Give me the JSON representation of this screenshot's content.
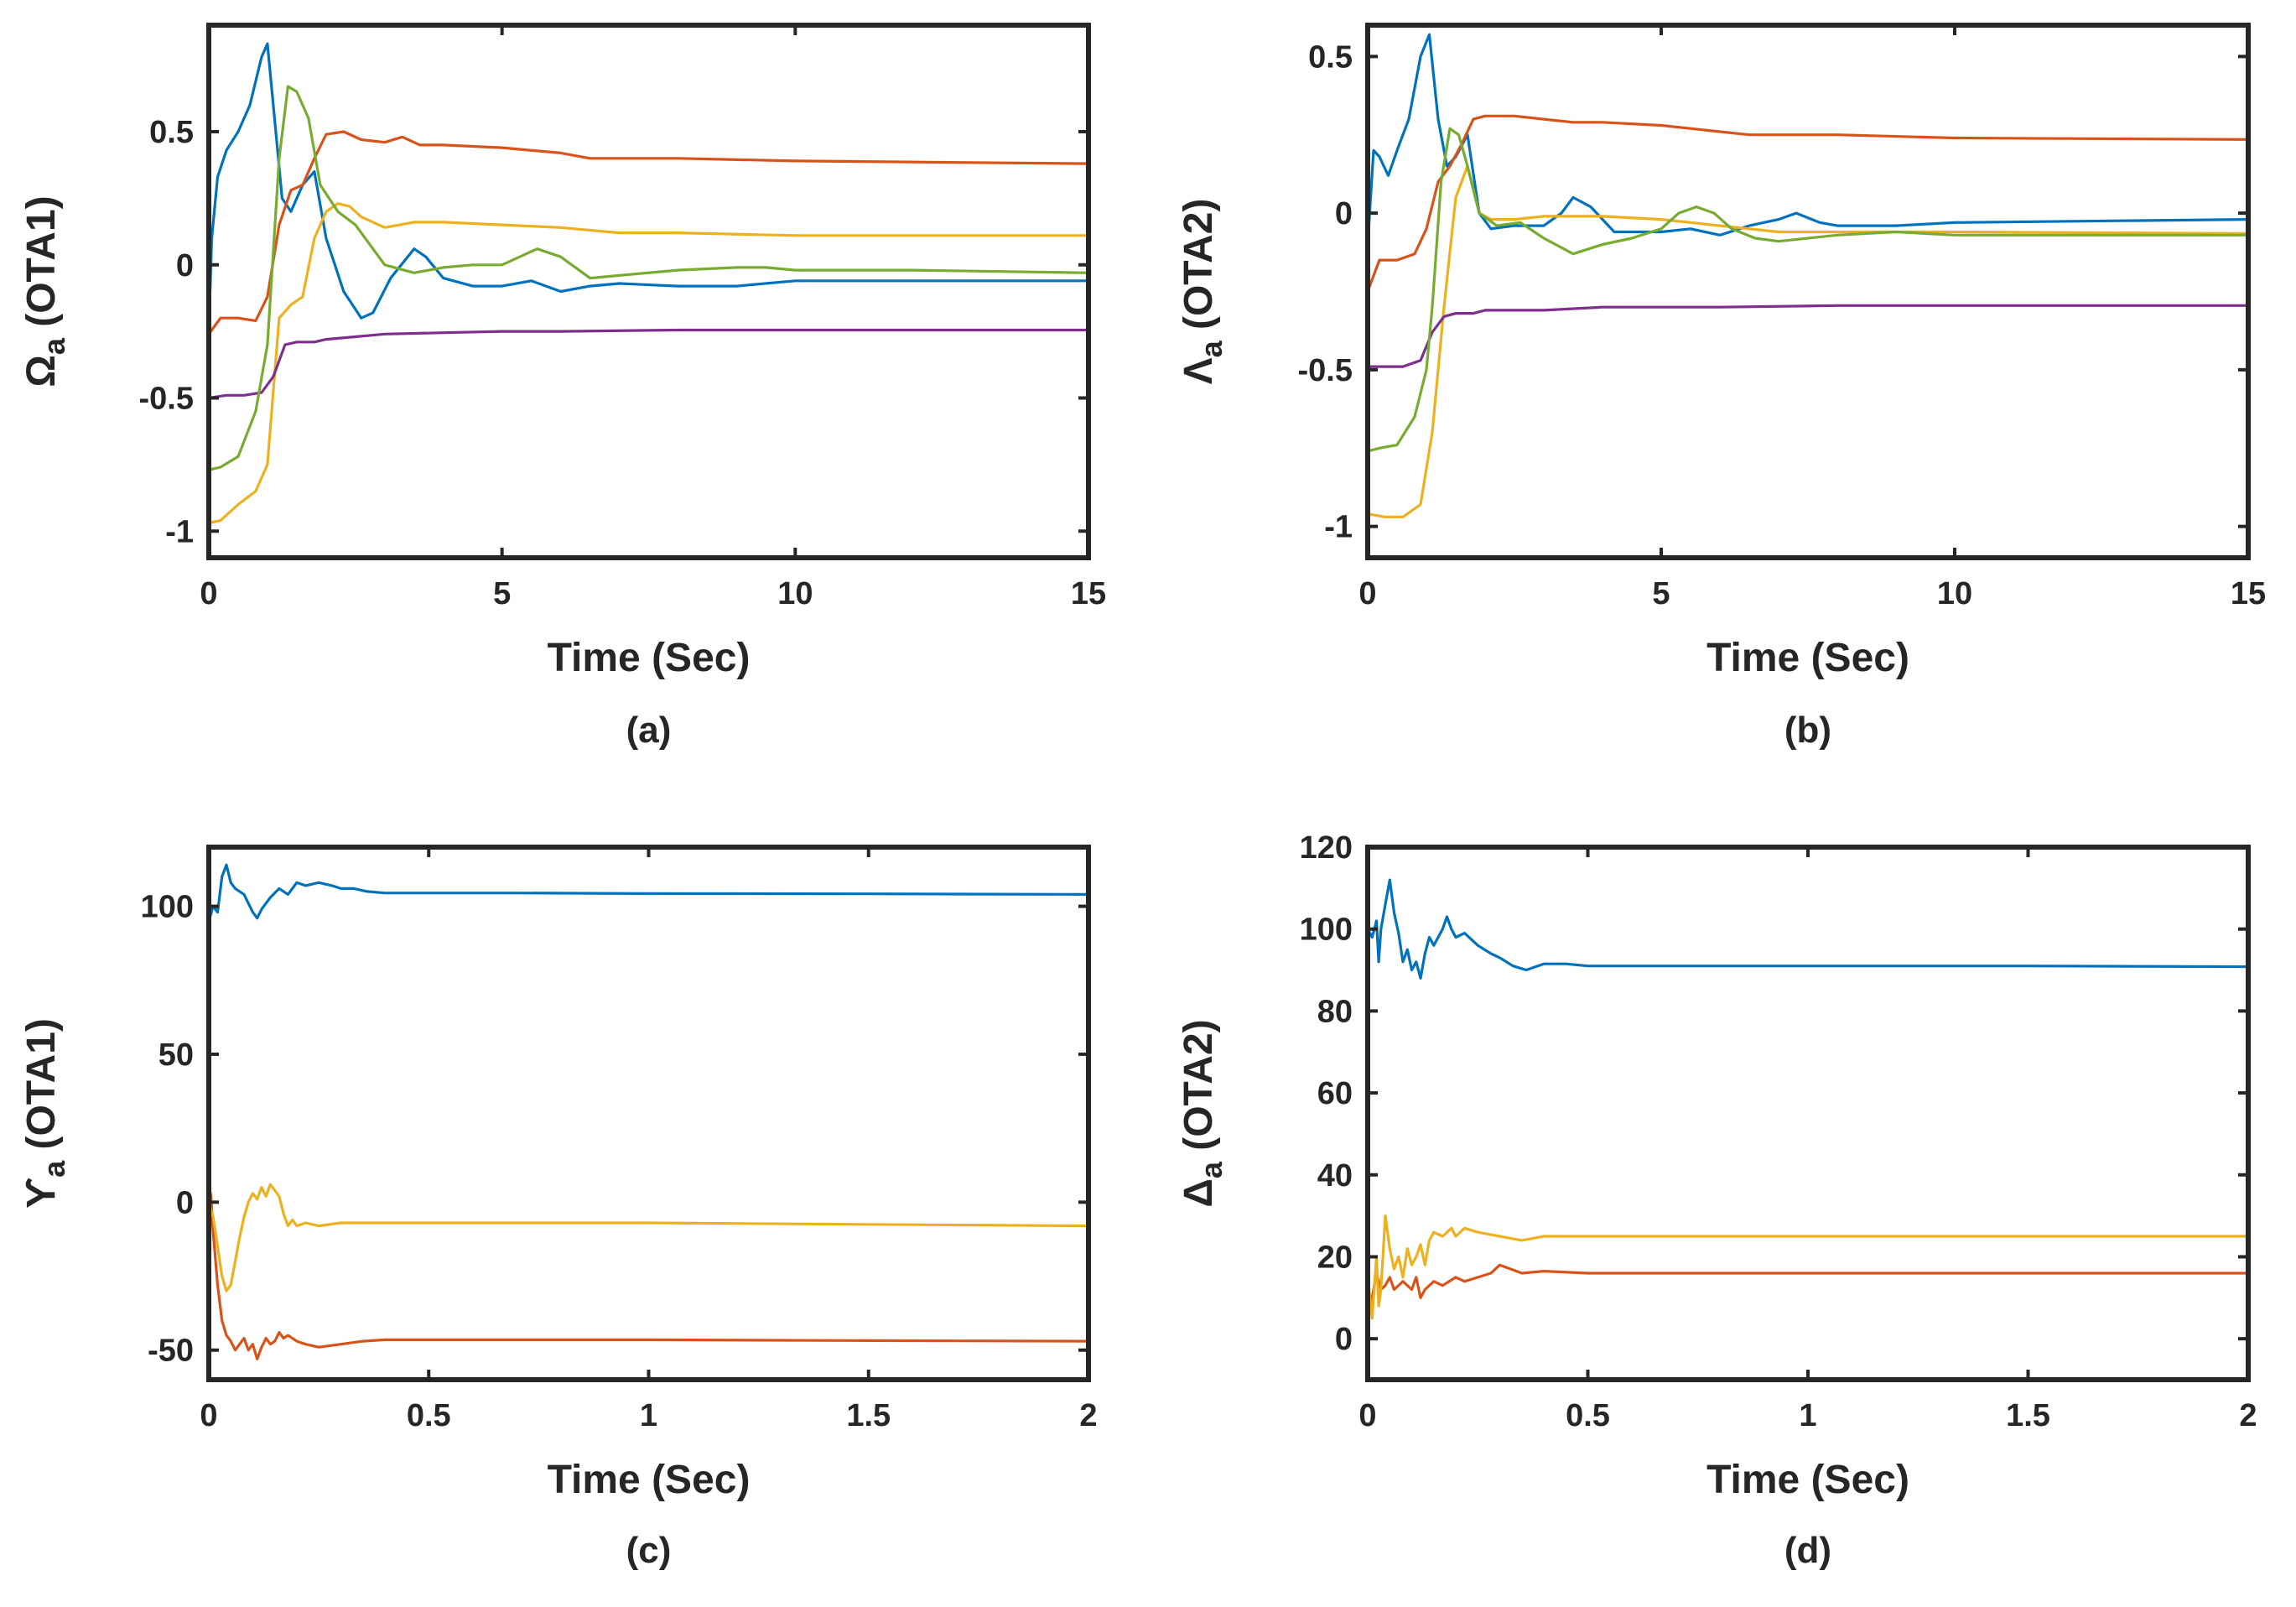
{
  "colors": {
    "blue": "#0072BD",
    "red": "#D95319",
    "yellow": "#EDB120",
    "purple": "#7E2F8E",
    "green": "#77AC30",
    "axis": "#262626"
  },
  "chart_data": [
    {
      "id": "a",
      "type": "line",
      "caption": "(a)",
      "ylabel": {
        "symbol": "Ω",
        "sub": "a",
        "rest": " (OTA1)"
      },
      "xlabel": "Time (Sec)",
      "xlim": [
        0,
        15
      ],
      "ylim": [
        -1.1,
        0.9
      ],
      "xticks": [
        0,
        5,
        10,
        15
      ],
      "xticklabels": [
        "0",
        "5",
        "10",
        "15"
      ],
      "yticks": [
        -1,
        -0.5,
        0,
        0.5
      ],
      "yticklabels": [
        "-1",
        "-0.5",
        "0",
        "0.5"
      ],
      "series": [
        {
          "name": "blue",
          "color": "#0072BD",
          "x": [
            0,
            0.05,
            0.15,
            0.3,
            0.5,
            0.7,
            0.9,
            1.0,
            1.1,
            1.25,
            1.4,
            1.6,
            1.8,
            2.0,
            2.3,
            2.6,
            2.8,
            3.1,
            3.5,
            3.7,
            4.0,
            4.5,
            5.0,
            5.5,
            6.0,
            6.5,
            7.0,
            8.0,
            9.0,
            10.0,
            12.0,
            15.0
          ],
          "y": [
            -0.25,
            0.1,
            0.33,
            0.43,
            0.5,
            0.6,
            0.78,
            0.83,
            0.6,
            0.25,
            0.2,
            0.3,
            0.35,
            0.1,
            -0.1,
            -0.2,
            -0.18,
            -0.05,
            0.06,
            0.03,
            -0.05,
            -0.08,
            -0.08,
            -0.06,
            -0.1,
            -0.08,
            -0.07,
            -0.08,
            -0.08,
            -0.06,
            -0.06,
            -0.06
          ]
        },
        {
          "name": "red",
          "color": "#D95319",
          "x": [
            0,
            0.2,
            0.5,
            0.8,
            1.0,
            1.2,
            1.4,
            1.6,
            1.8,
            2.0,
            2.3,
            2.6,
            3.0,
            3.3,
            3.6,
            4.0,
            5.0,
            6.0,
            6.5,
            8.0,
            10.0,
            15.0
          ],
          "y": [
            -0.26,
            -0.2,
            -0.2,
            -0.21,
            -0.12,
            0.15,
            0.28,
            0.3,
            0.4,
            0.49,
            0.5,
            0.47,
            0.46,
            0.48,
            0.45,
            0.45,
            0.44,
            0.42,
            0.4,
            0.4,
            0.39,
            0.38
          ]
        },
        {
          "name": "yellow",
          "color": "#EDB120",
          "x": [
            0,
            0.2,
            0.5,
            0.8,
            1.0,
            1.2,
            1.4,
            1.6,
            1.8,
            2.0,
            2.2,
            2.4,
            2.6,
            3.0,
            3.5,
            4.0,
            5.0,
            6.0,
            7.0,
            8.0,
            10.0,
            15.0
          ],
          "y": [
            -0.97,
            -0.96,
            -0.9,
            -0.85,
            -0.75,
            -0.2,
            -0.15,
            -0.12,
            0.1,
            0.2,
            0.23,
            0.22,
            0.18,
            0.14,
            0.16,
            0.16,
            0.15,
            0.14,
            0.12,
            0.12,
            0.11,
            0.11
          ]
        },
        {
          "name": "purple",
          "color": "#7E2F8E",
          "x": [
            0,
            0.3,
            0.6,
            0.9,
            1.1,
            1.3,
            1.5,
            1.8,
            2.0,
            2.5,
            3.0,
            4.0,
            5.0,
            6.0,
            8.0,
            10.0,
            15.0
          ],
          "y": [
            -0.5,
            -0.49,
            -0.49,
            -0.48,
            -0.42,
            -0.3,
            -0.29,
            -0.29,
            -0.28,
            -0.27,
            -0.26,
            -0.255,
            -0.25,
            -0.25,
            -0.245,
            -0.245,
            -0.245
          ]
        },
        {
          "name": "green",
          "color": "#77AC30",
          "x": [
            0,
            0.2,
            0.5,
            0.8,
            1.0,
            1.2,
            1.35,
            1.5,
            1.7,
            1.9,
            2.2,
            2.5,
            3.0,
            3.5,
            4.0,
            4.5,
            5.0,
            5.6,
            6.0,
            6.5,
            7.0,
            8.0,
            9.0,
            9.5,
            10.0,
            12.0,
            15.0
          ],
          "y": [
            -0.77,
            -0.76,
            -0.72,
            -0.55,
            -0.3,
            0.4,
            0.67,
            0.65,
            0.55,
            0.3,
            0.2,
            0.15,
            0.0,
            -0.03,
            -0.01,
            0.0,
            0.0,
            0.06,
            0.03,
            -0.05,
            -0.04,
            -0.02,
            -0.01,
            -0.01,
            -0.02,
            -0.02,
            -0.03
          ]
        }
      ]
    },
    {
      "id": "b",
      "type": "line",
      "caption": "(b)",
      "ylabel": {
        "symbol": "Λ",
        "sub": "a",
        "rest": " (OTA2)"
      },
      "xlabel": "Time (Sec)",
      "xlim": [
        0,
        15
      ],
      "ylim": [
        -1.1,
        0.6
      ],
      "xticks": [
        0,
        5,
        10,
        15
      ],
      "xticklabels": [
        "0",
        "5",
        "10",
        "15"
      ],
      "yticks": [
        -1,
        -0.5,
        0,
        0.5
      ],
      "yticklabels": [
        "-1",
        "-0.5",
        "0",
        "0.5"
      ],
      "series": [
        {
          "name": "blue",
          "color": "#0072BD",
          "x": [
            0,
            0.1,
            0.2,
            0.35,
            0.5,
            0.7,
            0.9,
            1.05,
            1.2,
            1.35,
            1.5,
            1.7,
            1.9,
            2.1,
            2.5,
            3.0,
            3.3,
            3.5,
            3.8,
            4.2,
            5.0,
            5.5,
            6.0,
            6.5,
            7.0,
            7.3,
            7.7,
            8.0,
            9.0,
            10.0,
            15.0
          ],
          "y": [
            -0.1,
            0.2,
            0.18,
            0.12,
            0.2,
            0.3,
            0.5,
            0.57,
            0.3,
            0.15,
            0.18,
            0.25,
            0.0,
            -0.05,
            -0.04,
            -0.04,
            0.0,
            0.05,
            0.02,
            -0.06,
            -0.06,
            -0.05,
            -0.07,
            -0.04,
            -0.02,
            0.0,
            -0.03,
            -0.04,
            -0.04,
            -0.03,
            -0.02
          ]
        },
        {
          "name": "red",
          "color": "#D95319",
          "x": [
            0,
            0.2,
            0.5,
            0.8,
            1.0,
            1.2,
            1.4,
            1.6,
            1.8,
            2.0,
            2.5,
            3.0,
            3.5,
            4.0,
            5.0,
            6.0,
            6.5,
            8.0,
            10.0,
            15.0
          ],
          "y": [
            -0.25,
            -0.15,
            -0.15,
            -0.13,
            -0.05,
            0.1,
            0.15,
            0.22,
            0.3,
            0.31,
            0.31,
            0.3,
            0.29,
            0.29,
            0.28,
            0.26,
            0.25,
            0.25,
            0.24,
            0.235
          ]
        },
        {
          "name": "yellow",
          "color": "#EDB120",
          "x": [
            0,
            0.3,
            0.6,
            0.9,
            1.1,
            1.3,
            1.5,
            1.7,
            1.9,
            2.1,
            2.5,
            3.0,
            3.5,
            4.0,
            5.0,
            6.0,
            7.0,
            8.0,
            10.0,
            15.0
          ],
          "y": [
            -0.96,
            -0.97,
            -0.97,
            -0.93,
            -0.7,
            -0.3,
            0.05,
            0.15,
            0.0,
            -0.02,
            -0.02,
            -0.01,
            -0.01,
            -0.01,
            -0.02,
            -0.04,
            -0.06,
            -0.06,
            -0.06,
            -0.065
          ]
        },
        {
          "name": "purple",
          "color": "#7E2F8E",
          "x": [
            0,
            0.3,
            0.6,
            0.9,
            1.1,
            1.3,
            1.5,
            1.8,
            2.0,
            3.0,
            4.0,
            5.0,
            6.0,
            8.0,
            10.0,
            15.0
          ],
          "y": [
            -0.49,
            -0.49,
            -0.49,
            -0.47,
            -0.38,
            -0.33,
            -0.32,
            -0.32,
            -0.31,
            -0.31,
            -0.3,
            -0.3,
            -0.3,
            -0.295,
            -0.295,
            -0.295
          ]
        },
        {
          "name": "green",
          "color": "#77AC30",
          "x": [
            0,
            0.2,
            0.5,
            0.8,
            1.0,
            1.1,
            1.25,
            1.4,
            1.55,
            1.7,
            1.9,
            2.2,
            2.6,
            3.0,
            3.5,
            4.0,
            4.5,
            5.0,
            5.3,
            5.6,
            5.9,
            6.2,
            6.6,
            7.0,
            7.5,
            8.0,
            9.0,
            10.0,
            15.0
          ],
          "y": [
            -0.76,
            -0.75,
            -0.74,
            -0.65,
            -0.5,
            -0.3,
            0.1,
            0.27,
            0.25,
            0.15,
            0.0,
            -0.04,
            -0.03,
            -0.08,
            -0.13,
            -0.1,
            -0.08,
            -0.05,
            0.0,
            0.02,
            0.0,
            -0.05,
            -0.08,
            -0.09,
            -0.08,
            -0.07,
            -0.06,
            -0.07,
            -0.07
          ]
        }
      ]
    },
    {
      "id": "c",
      "type": "line",
      "caption": "(c)",
      "ylabel": {
        "symbol": "ϒ",
        "sub": "a",
        "rest": " (OTA1)"
      },
      "xlabel": "Time (Sec)",
      "xlim": [
        0,
        2
      ],
      "ylim": [
        -60,
        120
      ],
      "xticks": [
        0,
        0.5,
        1,
        1.5,
        2
      ],
      "xticklabels": [
        "0",
        "0.5",
        "1",
        "1.5",
        "2"
      ],
      "yticks": [
        -50,
        0,
        50,
        100
      ],
      "yticklabels": [
        "-50",
        "0",
        "50",
        "100"
      ],
      "series": [
        {
          "name": "blue",
          "color": "#0072BD",
          "x": [
            0,
            0.01,
            0.02,
            0.03,
            0.04,
            0.05,
            0.06,
            0.08,
            0.1,
            0.11,
            0.12,
            0.14,
            0.16,
            0.18,
            0.2,
            0.22,
            0.25,
            0.28,
            0.3,
            0.33,
            0.36,
            0.4,
            0.5,
            0.7,
            1.0,
            1.5,
            2.0
          ],
          "y": [
            95,
            100,
            98,
            110,
            114,
            108,
            106,
            104,
            98,
            96,
            99,
            103,
            106,
            104,
            108,
            107,
            108,
            107,
            106,
            106,
            105,
            104.5,
            104.5,
            104.5,
            104.3,
            104.2,
            104
          ]
        },
        {
          "name": "red",
          "color": "#D95319",
          "x": [
            0,
            0.005,
            0.01,
            0.02,
            0.03,
            0.04,
            0.05,
            0.06,
            0.07,
            0.08,
            0.09,
            0.1,
            0.11,
            0.12,
            0.13,
            0.14,
            0.15,
            0.16,
            0.17,
            0.18,
            0.2,
            0.22,
            0.25,
            0.3,
            0.35,
            0.4,
            0.5,
            1.0,
            1.5,
            2.0
          ],
          "y": [
            6,
            2,
            -10,
            -28,
            -40,
            -45,
            -47,
            -50,
            -48,
            -46,
            -50,
            -48,
            -53,
            -49,
            -46,
            -48,
            -47,
            -44,
            -46,
            -45,
            -47,
            -48,
            -49,
            -48,
            -47,
            -46.5,
            -46.5,
            -46.5,
            -46.8,
            -47
          ]
        },
        {
          "name": "yellow",
          "color": "#EDB120",
          "x": [
            0,
            0.01,
            0.02,
            0.03,
            0.04,
            0.05,
            0.06,
            0.07,
            0.08,
            0.09,
            0.1,
            0.11,
            0.12,
            0.13,
            0.14,
            0.15,
            0.16,
            0.17,
            0.18,
            0.19,
            0.2,
            0.22,
            0.25,
            0.3,
            0.4,
            0.5,
            1.0,
            1.5,
            2.0
          ],
          "y": [
            0,
            -5,
            -15,
            -25,
            -30,
            -28,
            -20,
            -12,
            -5,
            0,
            3,
            1,
            5,
            2,
            6,
            4,
            2,
            -4,
            -8,
            -6,
            -8,
            -7,
            -8,
            -7,
            -7,
            -7,
            -7,
            -7.5,
            -8
          ]
        }
      ]
    },
    {
      "id": "d",
      "type": "line",
      "caption": "(d)",
      "ylabel": {
        "symbol": "Δ",
        "sub": "a",
        "rest": " (OTA2)"
      },
      "xlabel": "Time (Sec)",
      "xlim": [
        0,
        2
      ],
      "ylim": [
        -10,
        120
      ],
      "xticks": [
        0,
        0.5,
        1,
        1.5,
        2
      ],
      "xticklabels": [
        "0",
        "0.5",
        "1",
        "1.5",
        "2"
      ],
      "yticks": [
        0,
        20,
        40,
        60,
        80,
        100,
        120
      ],
      "yticklabels": [
        "0",
        "20",
        "40",
        "60",
        "80",
        "100",
        "120"
      ],
      "series": [
        {
          "name": "blue",
          "color": "#0072BD",
          "x": [
            0,
            0.01,
            0.02,
            0.025,
            0.03,
            0.04,
            0.05,
            0.06,
            0.07,
            0.08,
            0.09,
            0.1,
            0.11,
            0.12,
            0.13,
            0.14,
            0.15,
            0.16,
            0.17,
            0.18,
            0.19,
            0.2,
            0.22,
            0.25,
            0.28,
            0.3,
            0.33,
            0.36,
            0.4,
            0.45,
            0.5,
            0.7,
            1.0,
            1.5,
            2.0
          ],
          "y": [
            100,
            98,
            102,
            92,
            100,
            106,
            112,
            104,
            99,
            92,
            95,
            90,
            92,
            88,
            94,
            98,
            96,
            98,
            100,
            103,
            100,
            98,
            99,
            96,
            94,
            93,
            91,
            90,
            91.5,
            91.5,
            91,
            91,
            91,
            91,
            90.8
          ]
        },
        {
          "name": "red",
          "color": "#D95319",
          "x": [
            0,
            0.01,
            0.02,
            0.03,
            0.04,
            0.05,
            0.06,
            0.08,
            0.1,
            0.11,
            0.12,
            0.13,
            0.15,
            0.17,
            0.2,
            0.22,
            0.25,
            0.28,
            0.3,
            0.35,
            0.4,
            0.5,
            1.0,
            1.5,
            2.0
          ],
          "y": [
            5,
            10,
            16,
            12,
            13,
            15,
            12,
            14,
            12,
            15,
            10,
            12,
            14,
            13,
            15,
            14,
            15,
            16,
            18,
            16,
            16.5,
            16,
            16,
            16,
            16
          ]
        },
        {
          "name": "yellow",
          "color": "#EDB120",
          "x": [
            0,
            0.01,
            0.02,
            0.025,
            0.03,
            0.04,
            0.05,
            0.06,
            0.07,
            0.08,
            0.09,
            0.1,
            0.11,
            0.12,
            0.13,
            0.14,
            0.15,
            0.17,
            0.19,
            0.2,
            0.22,
            0.25,
            0.3,
            0.35,
            0.4,
            0.5,
            1.0,
            1.5,
            2.0
          ],
          "y": [
            15,
            5,
            20,
            8,
            12,
            30,
            22,
            17,
            20,
            15,
            22,
            18,
            20,
            23,
            18,
            24,
            26,
            25,
            27,
            25,
            27,
            26,
            25,
            24,
            25,
            25,
            25,
            25,
            25
          ]
        }
      ]
    }
  ]
}
